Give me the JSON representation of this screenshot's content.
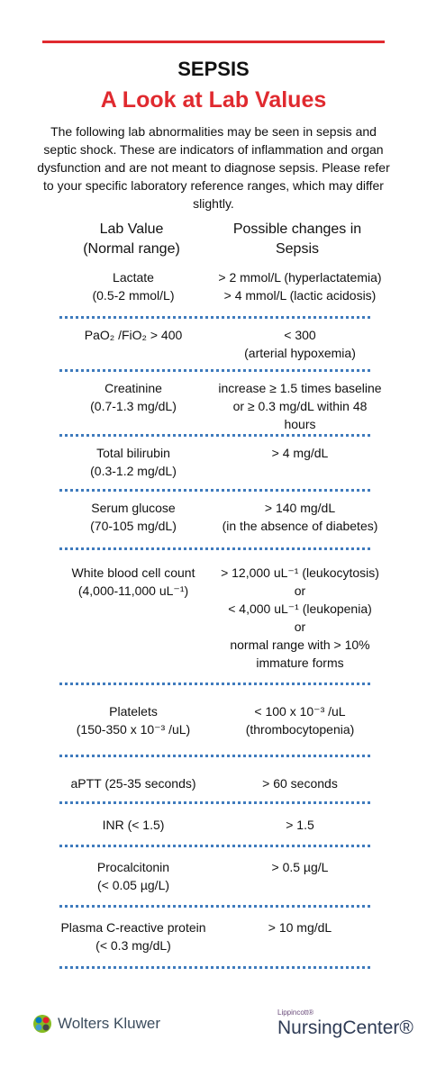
{
  "header": {
    "title": "SEPSIS",
    "subtitle": "A Look at Lab Values",
    "intro": "The following lab abnormalities may be seen in sepsis and septic shock. These are indicators of inflammation and organ dysfunction and are not meant to diagnose sepsis. Please refer to your specific laboratory reference ranges, which may differ slightly."
  },
  "columns": {
    "left_line1": "Lab Value",
    "left_line2": "(Normal range)",
    "right_line1": "Possible changes in",
    "right_line2": "Sepsis"
  },
  "rows": [
    {
      "left": [
        "Lactate",
        "(0.5-2 mmol/L)"
      ],
      "right": [
        "> 2 mmol/L (hyperlactatemia)",
        "> 4 mmol/L (lactic acidosis)"
      ]
    },
    {
      "left": [
        "PaO₂ /FiO₂ > 400"
      ],
      "right": [
        "< 300",
        "(arterial hypoxemia)"
      ]
    },
    {
      "left": [
        "Creatinine",
        "(0.7-1.3 mg/dL)"
      ],
      "right": [
        "increase ≥ 1.5 times baseline",
        "or ≥ 0.3 mg/dL within 48",
        "hours"
      ]
    },
    {
      "left": [
        "Total bilirubin",
        "(0.3-1.2 mg/dL)"
      ],
      "right": [
        "> 4 mg/dL"
      ]
    },
    {
      "left": [
        "Serum glucose",
        "(70-105 mg/dL)"
      ],
      "right": [
        "> 140 mg/dL",
        "(in the absence of diabetes)"
      ]
    },
    {
      "left": [
        "White blood cell count",
        "(4,000-11,000 uL⁻¹)"
      ],
      "right": [
        "> 12,000 uL⁻¹ (leukocytosis)",
        "or",
        "< 4,000 uL⁻¹ (leukopenia)",
        "or",
        "normal range with > 10%",
        "immature forms"
      ]
    },
    {
      "left": [
        "Platelets",
        "(150-350 x 10⁻³ /uL)"
      ],
      "right": [
        "< 100 x 10⁻³ /uL",
        "(thrombocytopenia)"
      ]
    },
    {
      "left": [
        "aPTT (25-35 seconds)"
      ],
      "right": [
        "> 60 seconds"
      ]
    },
    {
      "left": [
        "INR (< 1.5)"
      ],
      "right": [
        "> 1.5"
      ]
    },
    {
      "left": [
        "Procalcitonin",
        "(< 0.05 µg/L)"
      ],
      "right": [
        "> 0.5 µg/L"
      ]
    },
    {
      "left": [
        "Plasma C-reactive protein",
        "(< 0.3 mg/dL)"
      ],
      "right": [
        "> 10 mg/dL"
      ]
    }
  ],
  "footer": {
    "wk_logo_text": "Wolters Kluwer",
    "nc_small": "Lippincott®",
    "nc_big": "NursingCenter®"
  },
  "colors": {
    "accent_red": "#e02a2f",
    "divider_blue": "#3f7bbd"
  }
}
